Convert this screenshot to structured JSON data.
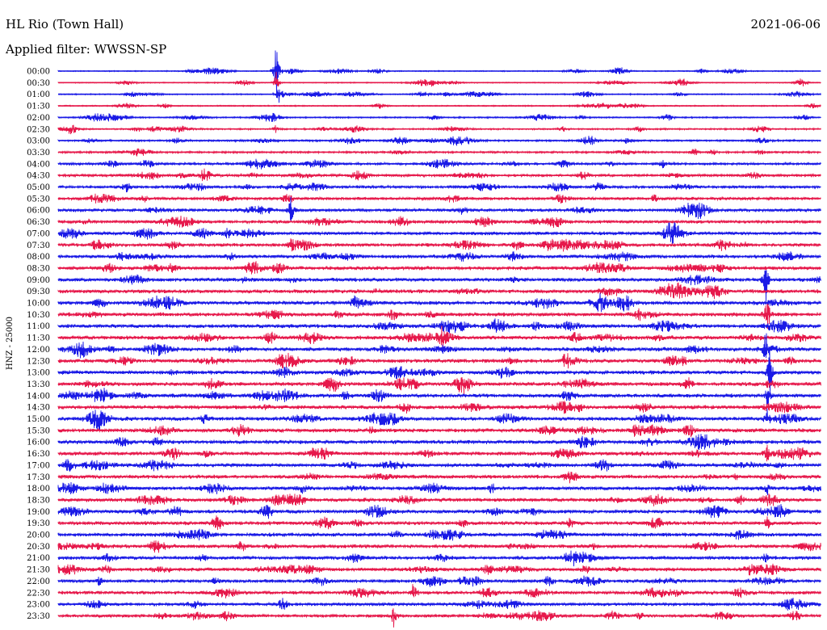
{
  "header": {
    "station": "HL Rio (Town Hall)",
    "date": "2021-06-06",
    "filter": "Applied filter: WWSSN-SP"
  },
  "chart_data": {
    "type": "line",
    "title": "HL Rio (Town Hall)",
    "ylabel": "HNZ - 25000",
    "colors": [
      "#1a1ae6",
      "#e6194b"
    ],
    "row_labels": [
      "00:00",
      "00:30",
      "01:00",
      "01:30",
      "02:00",
      "02:30",
      "03:00",
      "03:30",
      "04:00",
      "04:30",
      "05:00",
      "05:30",
      "06:00",
      "06:30",
      "07:00",
      "07:30",
      "08:00",
      "08:30",
      "09:00",
      "09:30",
      "10:00",
      "10:30",
      "11:00",
      "11:30",
      "12:00",
      "12:30",
      "13:00",
      "13:30",
      "14:00",
      "14:30",
      "15:00",
      "15:30",
      "16:00",
      "16:30",
      "17:00",
      "17:30",
      "18:00",
      "18:30",
      "19:00",
      "19:30",
      "20:00",
      "20:30",
      "21:00",
      "21:30",
      "22:00",
      "22:30",
      "23:00",
      "23:30"
    ],
    "noise_level": [
      0.25,
      0.25,
      0.3,
      0.3,
      0.35,
      0.4,
      0.45,
      0.5,
      0.6,
      0.65,
      0.7,
      0.75,
      0.8,
      0.8,
      0.85,
      0.85,
      0.9,
      0.95,
      0.95,
      0.95,
      1.0,
      1.0,
      1.0,
      1.0,
      1.0,
      1.0,
      1.0,
      1.0,
      1.0,
      1.0,
      1.0,
      1.0,
      1.0,
      0.95,
      0.95,
      0.95,
      0.95,
      0.95,
      0.95,
      0.95,
      0.95,
      0.95,
      0.9,
      0.9,
      0.85,
      0.85,
      0.8,
      0.8
    ],
    "spikes": [
      {
        "row": 0,
        "x": 342,
        "amp": 42
      },
      {
        "row": 1,
        "x": 342,
        "amp": 16
      },
      {
        "row": 2,
        "x": 345,
        "amp": 8
      },
      {
        "row": 5,
        "x": 342,
        "amp": 6
      },
      {
        "row": 12,
        "x": 360,
        "amp": 20
      },
      {
        "row": 15,
        "x": 360,
        "amp": 10
      },
      {
        "row": 18,
        "x": 948,
        "amp": 34
      },
      {
        "row": 21,
        "x": 950,
        "amp": 28
      },
      {
        "row": 24,
        "x": 948,
        "amp": 26
      },
      {
        "row": 26,
        "x": 953,
        "amp": 30
      },
      {
        "row": 28,
        "x": 950,
        "amp": 16
      },
      {
        "row": 30,
        "x": 950,
        "amp": 14
      },
      {
        "row": 33,
        "x": 950,
        "amp": 12
      },
      {
        "row": 36,
        "x": 950,
        "amp": 10
      },
      {
        "row": 39,
        "x": 950,
        "amp": 9
      },
      {
        "row": 42,
        "x": 948,
        "amp": 8
      },
      {
        "row": 23,
        "x": 548,
        "amp": 14
      },
      {
        "row": 39,
        "x": 706,
        "amp": 12
      },
      {
        "row": 45,
        "x": 512,
        "amp": 14
      },
      {
        "row": 47,
        "x": 487,
        "amp": 14
      }
    ]
  }
}
